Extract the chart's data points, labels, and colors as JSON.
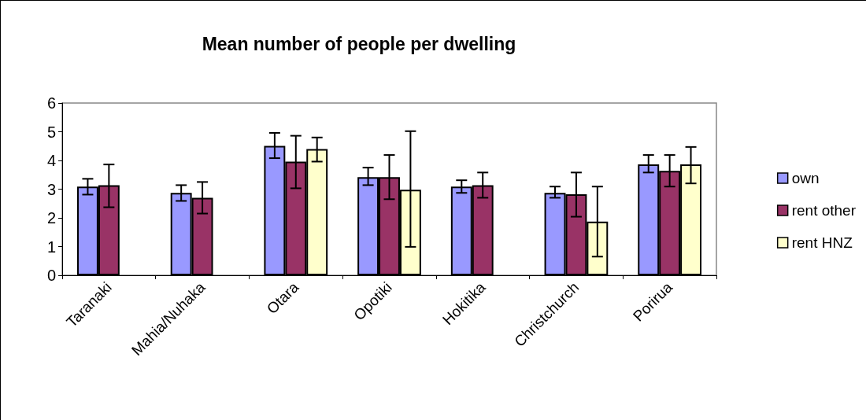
{
  "chart_data": {
    "type": "bar",
    "title": "Mean number of people per dwelling",
    "categories": [
      "Taranaki",
      "Mahia/Nuhaka",
      "Otara",
      "Opotiki",
      "Hokitika",
      "Christchurch",
      "Porirua"
    ],
    "series": [
      {
        "name": "own",
        "color": "#9999ff",
        "values": [
          3.09,
          2.87,
          4.51,
          3.42,
          3.09,
          2.87,
          3.86
        ],
        "errors": [
          [
            2.81,
            3.36
          ],
          [
            2.59,
            3.14
          ],
          [
            4.08,
            4.96
          ],
          [
            3.14,
            3.75
          ],
          [
            2.87,
            3.31
          ],
          [
            2.7,
            3.09
          ],
          [
            3.58,
            4.19
          ]
        ]
      },
      {
        "name": "rent other",
        "color": "#993366",
        "values": [
          3.14,
          2.7,
          3.96,
          3.42,
          3.14,
          2.82,
          3.64
        ],
        "errors": [
          [
            2.37,
            3.86
          ],
          [
            2.15,
            3.25
          ],
          [
            3.03,
            4.86
          ],
          [
            2.65,
            4.19
          ],
          [
            2.7,
            3.58
          ],
          [
            2.04,
            3.58
          ],
          [
            3.09,
            4.19
          ]
        ]
      },
      {
        "name": "rent HNZ",
        "color": "#ffffcc",
        "values": [
          null,
          null,
          4.4,
          2.98,
          null,
          1.87,
          3.86
        ],
        "errors": [
          null,
          null,
          [
            3.96,
            4.8
          ],
          [
            0.99,
            5.02
          ],
          null,
          [
            0.65,
            3.09
          ],
          [
            3.2,
            4.47
          ]
        ]
      }
    ],
    "ylim": [
      0,
      6
    ],
    "yticks": [
      0,
      1,
      2,
      3,
      4,
      5,
      6
    ],
    "grid": false,
    "legend": "right"
  }
}
